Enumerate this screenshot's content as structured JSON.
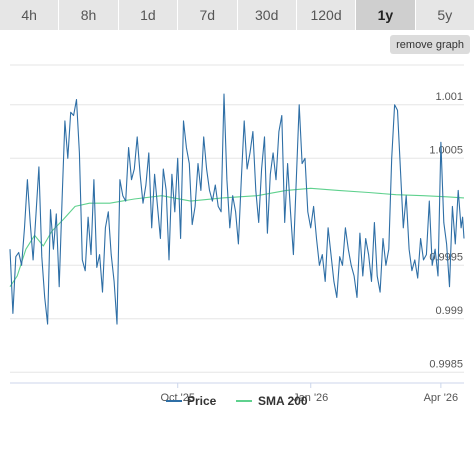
{
  "ranges": {
    "tabs": [
      "4h",
      "8h",
      "1d",
      "7d",
      "30d",
      "120d",
      "1y",
      "5y"
    ],
    "active_index": 6
  },
  "remove_graph_label": "remove graph",
  "colors": {
    "price": "#2f6fa6",
    "sma": "#5fd18e",
    "grid": "#e6e6e6",
    "axis": "#ccd6eb"
  },
  "chart_data": {
    "type": "line",
    "x_ticks": [
      {
        "date": "2025-10-01",
        "label": "Oct '25"
      },
      {
        "date": "2026-01-01",
        "label": "Jan '26"
      },
      {
        "date": "2026-04-01",
        "label": "Apr '26"
      }
    ],
    "y_ticks": [
      {
        "value": 0.9985,
        "label": "0.9985"
      },
      {
        "value": 0.999,
        "label": "0.999"
      },
      {
        "value": 0.9995,
        "label": "0.9995"
      },
      {
        "value": 1.0005,
        "label": "1.0005"
      },
      {
        "value": 1.001,
        "label": "1.001"
      }
    ],
    "ylim": [
      0.9984,
      1.0014
    ],
    "xlim": [
      "2025-06-07",
      "2026-04-17"
    ],
    "grid": true,
    "legend_position": "bottom-center",
    "series": [
      {
        "name": "Price",
        "color": "#2f6fa6",
        "points": [
          [
            "2025-06-07",
            0.99965
          ],
          [
            "2025-06-09",
            0.99905
          ],
          [
            "2025-06-11",
            0.99958
          ],
          [
            "2025-06-13",
            0.99962
          ],
          [
            "2025-06-15",
            0.9995
          ],
          [
            "2025-06-17",
            0.99985
          ],
          [
            "2025-06-19",
            1.0003
          ],
          [
            "2025-06-21",
            0.9999
          ],
          [
            "2025-06-23",
            0.99955
          ],
          [
            "2025-06-25",
            0.99998
          ],
          [
            "2025-06-27",
            1.00042
          ],
          [
            "2025-06-29",
            0.99958
          ],
          [
            "2025-07-01",
            0.9992
          ],
          [
            "2025-07-03",
            0.99895
          ],
          [
            "2025-07-05",
            1.00002
          ],
          [
            "2025-07-07",
            0.99965
          ],
          [
            "2025-07-09",
            0.99998
          ],
          [
            "2025-07-11",
            0.9993
          ],
          [
            "2025-07-13",
            1.00012
          ],
          [
            "2025-07-15",
            1.00085
          ],
          [
            "2025-07-17",
            1.0005
          ],
          [
            "2025-07-19",
            1.00093
          ],
          [
            "2025-07-21",
            1.0009
          ],
          [
            "2025-07-23",
            1.00105
          ],
          [
            "2025-07-25",
            1.00055
          ],
          [
            "2025-07-27",
            0.99955
          ],
          [
            "2025-07-29",
            0.99945
          ],
          [
            "2025-07-31",
            0.99995
          ],
          [
            "2025-08-02",
            0.9996
          ],
          [
            "2025-08-04",
            1.0003
          ],
          [
            "2025-08-06",
            0.99948
          ],
          [
            "2025-08-08",
            0.9996
          ],
          [
            "2025-08-10",
            0.99925
          ],
          [
            "2025-08-12",
            0.99985
          ],
          [
            "2025-08-14",
            1.0
          ],
          [
            "2025-08-16",
            0.9996
          ],
          [
            "2025-08-18",
            0.99935
          ],
          [
            "2025-08-20",
            0.99895
          ],
          [
            "2025-08-22",
            1.0003
          ],
          [
            "2025-08-24",
            1.00015
          ],
          [
            "2025-08-26",
            1.0001
          ],
          [
            "2025-08-28",
            1.0006
          ],
          [
            "2025-08-30",
            1.0003
          ],
          [
            "2025-09-01",
            1.0004
          ],
          [
            "2025-09-03",
            1.0007
          ],
          [
            "2025-09-05",
            1.00035
          ],
          [
            "2025-09-07",
            1.00008
          ],
          [
            "2025-09-09",
            1.00025
          ],
          [
            "2025-09-11",
            1.00055
          ],
          [
            "2025-09-13",
            0.99985
          ],
          [
            "2025-09-15",
            1.00035
          ],
          [
            "2025-09-17",
            1.00005
          ],
          [
            "2025-09-19",
            0.99975
          ],
          [
            "2025-09-21",
            1.0004
          ],
          [
            "2025-09-23",
            1.0002
          ],
          [
            "2025-09-25",
            0.99955
          ],
          [
            "2025-09-27",
            1.00035
          ],
          [
            "2025-09-29",
            1.0
          ],
          [
            "2025-10-01",
            1.0005
          ],
          [
            "2025-10-03",
            0.99975
          ],
          [
            "2025-10-05",
            1.00085
          ],
          [
            "2025-10-07",
            1.0006
          ],
          [
            "2025-10-09",
            1.00045
          ],
          [
            "2025-10-11",
            0.99988
          ],
          [
            "2025-10-13",
            1.00005
          ],
          [
            "2025-10-15",
            1.00045
          ],
          [
            "2025-10-17",
            1.0002
          ],
          [
            "2025-10-19",
            1.0007
          ],
          [
            "2025-10-21",
            1.0004
          ],
          [
            "2025-10-23",
            1.0002
          ],
          [
            "2025-10-25",
            1.0001
          ],
          [
            "2025-10-27",
            1.00025
          ],
          [
            "2025-10-29",
            1.00005
          ],
          [
            "2025-10-31",
            1.0
          ],
          [
            "2025-11-02",
            1.0011
          ],
          [
            "2025-11-04",
            1.0003
          ],
          [
            "2025-11-06",
            0.99985
          ],
          [
            "2025-11-08",
            1.00015
          ],
          [
            "2025-11-10",
            1.0
          ],
          [
            "2025-11-12",
            0.9997
          ],
          [
            "2025-11-14",
            1.0003
          ],
          [
            "2025-11-16",
            1.00085
          ],
          [
            "2025-11-18",
            1.0004
          ],
          [
            "2025-11-20",
            1.00055
          ],
          [
            "2025-11-22",
            1.00075
          ],
          [
            "2025-11-24",
            1.0002
          ],
          [
            "2025-11-26",
            0.9999
          ],
          [
            "2025-11-28",
            1.0004
          ],
          [
            "2025-11-30",
            1.0007
          ],
          [
            "2025-12-02",
            0.9998
          ],
          [
            "2025-12-04",
            1.00035
          ],
          [
            "2025-12-06",
            1.00055
          ],
          [
            "2025-12-08",
            1.0003
          ],
          [
            "2025-12-10",
            1.00075
          ],
          [
            "2025-12-12",
            1.0009
          ],
          [
            "2025-12-14",
            0.9999
          ],
          [
            "2025-12-16",
            1.00045
          ],
          [
            "2025-12-18",
            1.0
          ],
          [
            "2025-12-20",
            0.9996
          ],
          [
            "2025-12-22",
            1.0003
          ],
          [
            "2025-12-24",
            1.001
          ],
          [
            "2025-12-26",
            1.00045
          ],
          [
            "2025-12-28",
            1.0005
          ],
          [
            "2025-12-30",
            1.0
          ],
          [
            "2026-01-01",
            0.99985
          ],
          [
            "2026-01-03",
            1.00005
          ],
          [
            "2026-01-05",
            0.99975
          ],
          [
            "2026-01-07",
            0.9995
          ],
          [
            "2026-01-09",
            0.9996
          ],
          [
            "2026-01-11",
            0.99935
          ],
          [
            "2026-01-13",
            0.99985
          ],
          [
            "2026-01-15",
            0.9996
          ],
          [
            "2026-01-17",
            0.99935
          ],
          [
            "2026-01-19",
            0.9992
          ],
          [
            "2026-01-21",
            0.99958
          ],
          [
            "2026-01-23",
            0.9995
          ],
          [
            "2026-01-25",
            0.99985
          ],
          [
            "2026-01-27",
            0.99965
          ],
          [
            "2026-01-29",
            0.9995
          ],
          [
            "2026-01-31",
            0.9994
          ],
          [
            "2026-02-02",
            0.9992
          ],
          [
            "2026-02-04",
            0.9998
          ],
          [
            "2026-02-06",
            0.9994
          ],
          [
            "2026-02-08",
            0.99975
          ],
          [
            "2026-02-10",
            0.9996
          ],
          [
            "2026-02-12",
            0.99935
          ],
          [
            "2026-02-14",
            0.9999
          ],
          [
            "2026-02-16",
            0.9994
          ],
          [
            "2026-02-18",
            0.99925
          ],
          [
            "2026-02-20",
            0.99975
          ],
          [
            "2026-02-22",
            0.9995
          ],
          [
            "2026-02-24",
            0.99965
          ],
          [
            "2026-02-26",
            1.0005
          ],
          [
            "2026-02-28",
            1.001
          ],
          [
            "2026-03-02",
            1.00095
          ],
          [
            "2026-03-04",
            1.0004
          ],
          [
            "2026-03-06",
            0.99985
          ],
          [
            "2026-03-08",
            1.00015
          ],
          [
            "2026-03-10",
            0.99965
          ],
          [
            "2026-03-12",
            0.99945
          ],
          [
            "2026-03-14",
            0.99955
          ],
          [
            "2026-03-16",
            0.99938
          ],
          [
            "2026-03-18",
            0.99975
          ],
          [
            "2026-03-20",
            0.99955
          ],
          [
            "2026-03-22",
            0.9996
          ],
          [
            "2026-03-24",
            1.0001
          ],
          [
            "2026-03-26",
            0.9995
          ],
          [
            "2026-03-28",
            0.99965
          ],
          [
            "2026-03-30",
            0.9994
          ],
          [
            "2026-04-01",
            1.00065
          ],
          [
            "2026-04-03",
            0.9999
          ],
          [
            "2026-04-05",
            0.9997
          ],
          [
            "2026-04-07",
            0.9993
          ],
          [
            "2026-04-09",
            1.00005
          ],
          [
            "2026-04-11",
            0.9997
          ],
          [
            "2026-04-13",
            1.0002
          ],
          [
            "2026-04-15",
            0.99985
          ],
          [
            "2026-04-16",
            0.99995
          ],
          [
            "2026-04-17",
            0.99975
          ]
        ]
      },
      {
        "name": "SMA 200",
        "color": "#5fd18e",
        "points": [
          [
            "2025-06-07",
            0.9993
          ],
          [
            "2025-06-12",
            0.9994
          ],
          [
            "2025-06-18",
            0.99965
          ],
          [
            "2025-06-24",
            0.99978
          ],
          [
            "2025-06-30",
            0.99968
          ],
          [
            "2025-07-06",
            0.99982
          ],
          [
            "2025-07-14",
            0.99993
          ],
          [
            "2025-07-22",
            1.00005
          ],
          [
            "2025-08-01",
            1.00008
          ],
          [
            "2025-08-15",
            1.00008
          ],
          [
            "2025-09-01",
            1.00012
          ],
          [
            "2025-09-20",
            1.00015
          ],
          [
            "2025-10-10",
            1.0001
          ],
          [
            "2025-11-01",
            1.00013
          ],
          [
            "2025-11-25",
            1.00015
          ],
          [
            "2025-12-15",
            1.0002
          ],
          [
            "2026-01-01",
            1.00022
          ],
          [
            "2026-01-20",
            1.0002
          ],
          [
            "2026-02-10",
            1.00018
          ],
          [
            "2026-03-01",
            1.00016
          ],
          [
            "2026-03-20",
            1.00015
          ],
          [
            "2026-04-05",
            1.00014
          ],
          [
            "2026-04-17",
            1.00013
          ]
        ]
      }
    ]
  }
}
